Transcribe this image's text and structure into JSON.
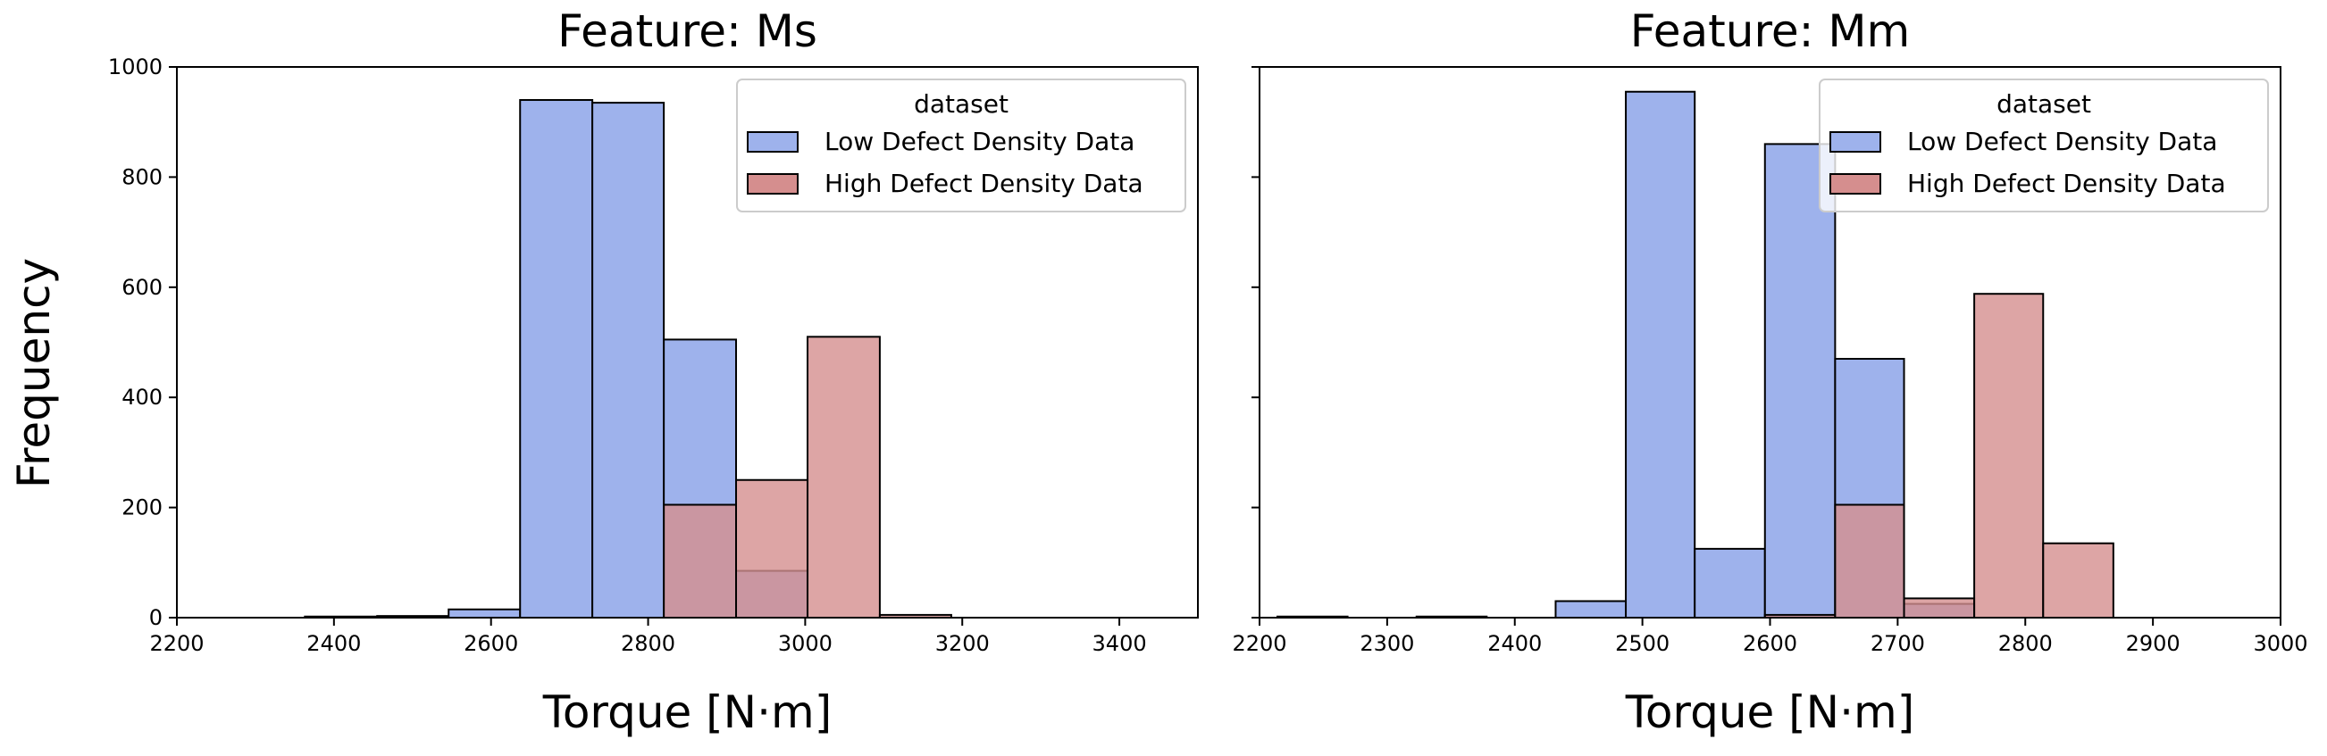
{
  "figure": {
    "ylabel": "Frequency",
    "legend_title": "dataset"
  },
  "chart_data": [
    {
      "type": "bar",
      "title": "Feature: Ms",
      "xlabel": "Torque [N·m]",
      "ylabel": "Frequency",
      "xlim": [
        2200,
        3500
      ],
      "ylim": [
        0,
        1000
      ],
      "xticks": [
        2200,
        2400,
        2600,
        2800,
        3000,
        3200,
        3400
      ],
      "yticks": [
        0,
        200,
        400,
        600,
        800,
        1000
      ],
      "legend": {
        "title": "dataset",
        "location": "top-right"
      },
      "series": [
        {
          "name": "Low Defect Density Data",
          "color": "#9eb2ec",
          "bins": [
            {
              "x0": 2363,
              "x1": 2455,
              "y": 2
            },
            {
              "x0": 2455,
              "x1": 2546,
              "y": 3
            },
            {
              "x0": 2546,
              "x1": 2637,
              "y": 15
            },
            {
              "x0": 2637,
              "x1": 2729,
              "y": 940
            },
            {
              "x0": 2729,
              "x1": 2820,
              "y": 935
            },
            {
              "x0": 2820,
              "x1": 2912,
              "y": 505
            },
            {
              "x0": 2912,
              "x1": 3003,
              "y": 85
            }
          ]
        },
        {
          "name": "High Defect Density Data",
          "color": "#d58e8e",
          "bins": [
            {
              "x0": 2820,
              "x1": 2912,
              "y": 205
            },
            {
              "x0": 2912,
              "x1": 3003,
              "y": 250
            },
            {
              "x0": 3003,
              "x1": 3095,
              "y": 510
            },
            {
              "x0": 3095,
              "x1": 3186,
              "y": 5
            }
          ]
        }
      ]
    },
    {
      "type": "bar",
      "title": "Feature: Mm",
      "xlabel": "Torque [N·m]",
      "xlim": [
        2200,
        3000
      ],
      "ylim": [
        0,
        1000
      ],
      "xticks": [
        2200,
        2300,
        2400,
        2500,
        2600,
        2700,
        2800,
        2900,
        3000
      ],
      "yticks": [
        0,
        200,
        400,
        600,
        800,
        1000
      ],
      "legend": {
        "title": "dataset",
        "location": "top-right"
      },
      "series": [
        {
          "name": "Low Defect Density Data",
          "color": "#9eb2ec",
          "bins": [
            {
              "x0": 2214,
              "x1": 2269,
              "y": 2
            },
            {
              "x0": 2323,
              "x1": 2378,
              "y": 2
            },
            {
              "x0": 2432,
              "x1": 2487,
              "y": 30
            },
            {
              "x0": 2487,
              "x1": 2541,
              "y": 955
            },
            {
              "x0": 2541,
              "x1": 2596,
              "y": 125
            },
            {
              "x0": 2596,
              "x1": 2651,
              "y": 860
            },
            {
              "x0": 2651,
              "x1": 2705,
              "y": 470
            },
            {
              "x0": 2705,
              "x1": 2760,
              "y": 25
            }
          ]
        },
        {
          "name": "High Defect Density Data",
          "color": "#d58e8e",
          "bins": [
            {
              "x0": 2596,
              "x1": 2651,
              "y": 5
            },
            {
              "x0": 2651,
              "x1": 2705,
              "y": 205
            },
            {
              "x0": 2705,
              "x1": 2760,
              "y": 35
            },
            {
              "x0": 2760,
              "x1": 2814,
              "y": 588
            },
            {
              "x0": 2814,
              "x1": 2869,
              "y": 135
            }
          ]
        }
      ]
    }
  ]
}
